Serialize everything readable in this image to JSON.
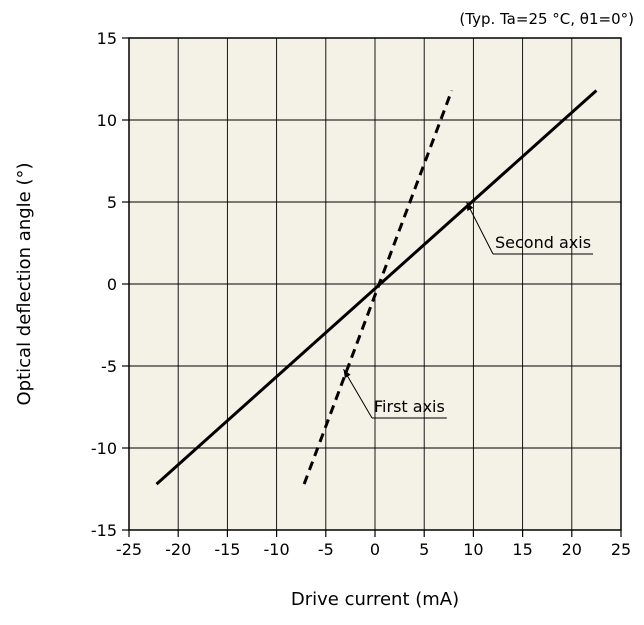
{
  "chart_data": {
    "type": "line",
    "title": "",
    "note": "(Typ. Ta=25 °C, θ1=0°)",
    "xlabel": "Drive current (mA)",
    "ylabel": "Optical deflection angle (°)",
    "xlim": [
      -25,
      25
    ],
    "ylim": [
      -15,
      15
    ],
    "xticks": [
      "-25",
      "-20",
      "-15",
      "-10",
      "-5",
      "0",
      "5",
      "10",
      "15",
      "20",
      "25"
    ],
    "yticks": [
      "-15",
      "-10",
      "-5",
      "0",
      "5",
      "10",
      "15"
    ],
    "grid": true,
    "background": "#f4f1e6",
    "series": [
      {
        "name": "Second axis",
        "style": "solid",
        "color": "#000000",
        "x": [
          -22.2,
          22.5
        ],
        "y": [
          -12.2,
          11.8
        ]
      },
      {
        "name": "First axis",
        "style": "dashed",
        "color": "#000000",
        "x": [
          -7.2,
          7.8
        ],
        "y": [
          -12.2,
          11.8
        ]
      }
    ],
    "annotations": [
      {
        "text": "Second axis",
        "point": [
          9.3,
          5.0
        ]
      },
      {
        "text": "First axis",
        "point": [
          -3.2,
          -5.2
        ]
      }
    ]
  }
}
